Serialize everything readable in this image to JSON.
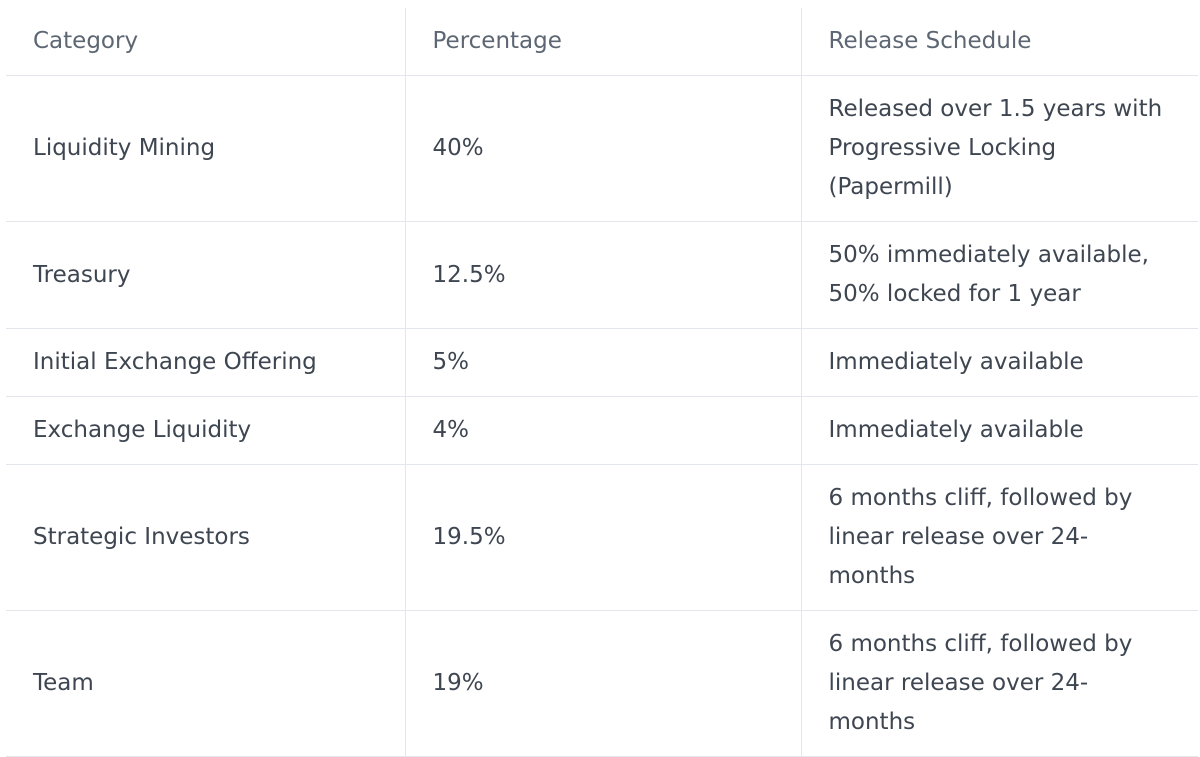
{
  "table": {
    "header": [
      "Category",
      "Percentage",
      "Release Schedule"
    ],
    "rows": [
      [
        "Liquidity Mining",
        "40%",
        "Released over 1.5 years with Progressive Locking (Papermill)"
      ],
      [
        "Treasury",
        "12.5%",
        "50% immediately available, 50% locked for 1 year"
      ],
      [
        "Initial Exchange Offering",
        "5%",
        "Immediately available"
      ],
      [
        "Exchange Liquidity",
        "4%",
        "Immediately available"
      ],
      [
        "Strategic Investors",
        "19.5%",
        "6 months cliff, followed by linear release over 24-months"
      ],
      [
        "Team",
        "19%",
        "6 months cliff, followed by linear release over 24-months"
      ]
    ]
  }
}
